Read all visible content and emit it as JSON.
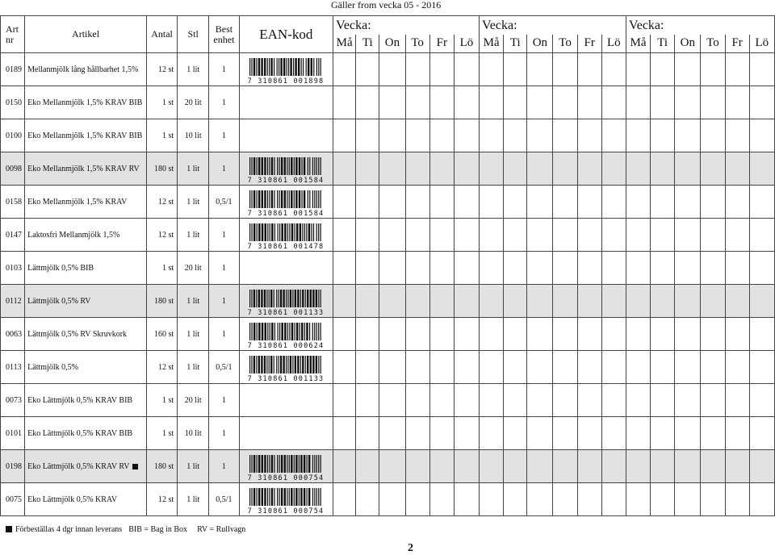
{
  "validity": "Gäller from vecka 05 - 2016",
  "headers": {
    "art_nr": "Art nr",
    "article": "Artikel",
    "quantity": "Antal",
    "unit": "Stl",
    "best_unit": "Best enhet",
    "ean": "EAN-kod",
    "week_label": "Vecka:",
    "days": [
      "Må",
      "Ti",
      "On",
      "To",
      "Fr",
      "Lö"
    ]
  },
  "rows": [
    {
      "art": "0189",
      "name": "Mellanmjölk lång hållbarhet 1,5%",
      "qty": "12 st",
      "unit": "1 lit",
      "bulk": "1",
      "ean": "7 310861 001898",
      "shaded": false,
      "preorder": false
    },
    {
      "art": "0150",
      "name": "Eko Mellanmjölk 1,5% KRAV BIB",
      "qty": "1 st",
      "unit": "20 lit",
      "bulk": "1",
      "ean": "",
      "shaded": false,
      "preorder": false
    },
    {
      "art": "0100",
      "name": "Eko Mellanmjölk 1,5% KRAV BIB",
      "qty": "1 st",
      "unit": "10 lit",
      "bulk": "1",
      "ean": "",
      "shaded": false,
      "preorder": false
    },
    {
      "art": "0098",
      "name": "Eko Mellanmjölk 1,5% KRAV RV",
      "qty": "180 st",
      "unit": "1 lit",
      "bulk": "1",
      "ean": "7 310861 001584",
      "shaded": true,
      "preorder": false
    },
    {
      "art": "0158",
      "name": "Eko Mellanmjölk 1,5% KRAV",
      "qty": "12 st",
      "unit": "1 lit",
      "bulk": "0,5/1",
      "ean": "7 310861 001584",
      "shaded": false,
      "preorder": false
    },
    {
      "art": "0147",
      "name": "Laktosfri Mellanmjölk 1,5%",
      "qty": "12 st",
      "unit": "1 lit",
      "bulk": "1",
      "ean": "7 310861 001478",
      "shaded": false,
      "preorder": false
    },
    {
      "art": "0103",
      "name": "Lättmjölk 0,5% BIB",
      "qty": "1 st",
      "unit": "20 lit",
      "bulk": "1",
      "ean": "",
      "shaded": false,
      "preorder": false
    },
    {
      "art": "0112",
      "name": "Lättmjölk 0,5% RV",
      "qty": "180 st",
      "unit": "1 lit",
      "bulk": "1",
      "ean": "7 310861 001133",
      "shaded": true,
      "preorder": false
    },
    {
      "art": "0063",
      "name": "Lättmjölk 0,5% RV Skruvkork",
      "qty": "160 st",
      "unit": "1 lit",
      "bulk": "1",
      "ean": "7 310861 000624",
      "shaded": false,
      "preorder": false
    },
    {
      "art": "0113",
      "name": "Lättmjölk 0,5%",
      "qty": "12 st",
      "unit": "1 lit",
      "bulk": "0,5/1",
      "ean": "7 310861 001133",
      "shaded": false,
      "preorder": false
    },
    {
      "art": "0073",
      "name": "Eko Lättmjölk 0,5% KRAV BIB",
      "qty": "1 st",
      "unit": "20 lit",
      "bulk": "1",
      "ean": "",
      "shaded": false,
      "preorder": false
    },
    {
      "art": "0101",
      "name": "Eko Lättmjölk 0,5% KRAV BIB",
      "qty": "1 st",
      "unit": "10 lit",
      "bulk": "1",
      "ean": "",
      "shaded": false,
      "preorder": false
    },
    {
      "art": "0198",
      "name": "Eko Lättmjölk 0,5% KRAV RV",
      "qty": "180 st",
      "unit": "1 lit",
      "bulk": "1",
      "ean": "7 310861 000754",
      "shaded": true,
      "preorder": true
    },
    {
      "art": "0075",
      "name": "Eko Lättmjölk 0,5% KRAV",
      "qty": "12 st",
      "unit": "1 lit",
      "bulk": "0,5/1",
      "ean": "7 310861 000754",
      "shaded": false,
      "preorder": false
    }
  ],
  "footer": {
    "preorder_note": "Förbeställas 4 dgr innan leverans",
    "bib_note": "BIB = Bag in Box",
    "rv_note": "RV = Rullvagn"
  },
  "page_number": "2"
}
